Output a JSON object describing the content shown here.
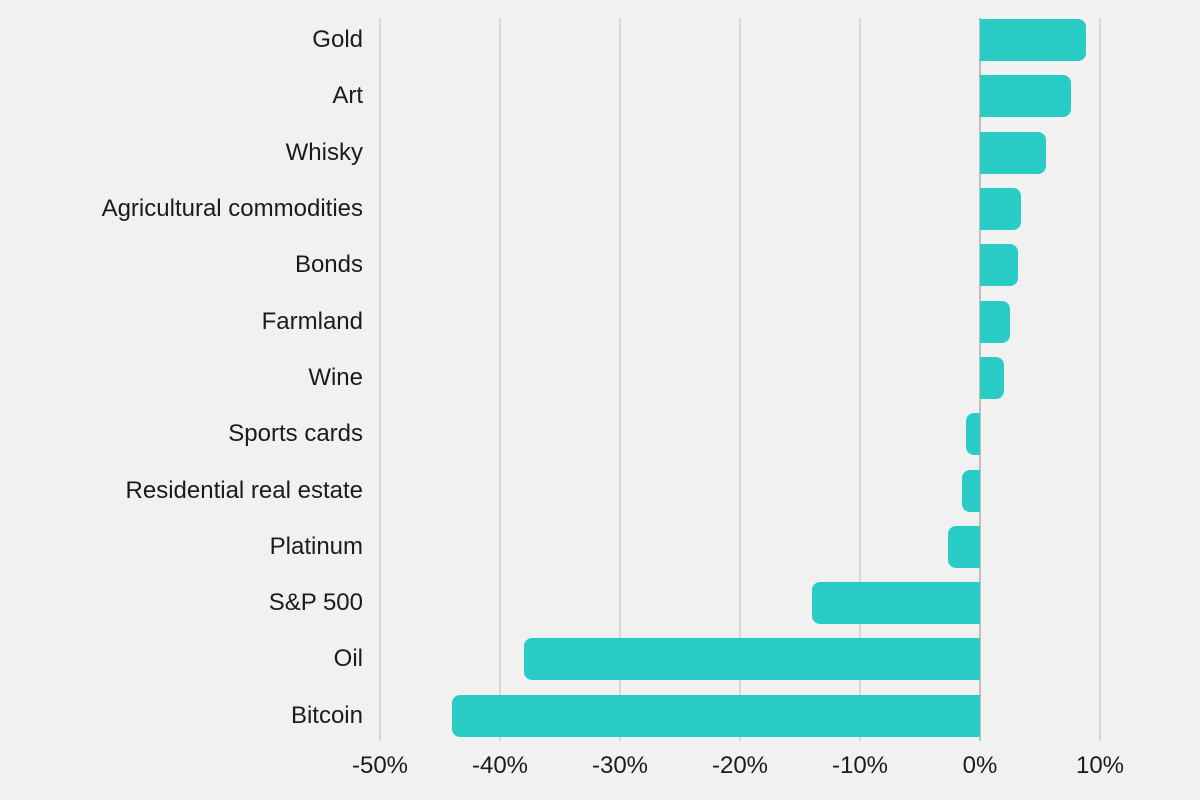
{
  "chart_data": {
    "type": "bar",
    "orientation": "horizontal",
    "title": "",
    "categories": [
      "Gold",
      "Art",
      "Whisky",
      "Agricultural commodities",
      "Bonds",
      "Farmland",
      "Wine",
      "Sports cards",
      "Residential real estate",
      "Platinum",
      "S&P 500",
      "Oil",
      "Bitcoin"
    ],
    "values": [
      8.8,
      7.6,
      5.5,
      3.4,
      3.2,
      2.5,
      2.0,
      -1.2,
      -1.5,
      -2.7,
      -14.0,
      -38.0,
      -44.0
    ],
    "value_suffix": "%",
    "xlabel": "",
    "ylabel": "",
    "xlim": [
      -50,
      10
    ],
    "x_ticks": [
      {
        "value": -50,
        "label": "-50%"
      },
      {
        "value": -40,
        "label": "-40%"
      },
      {
        "value": -30,
        "label": "-30%"
      },
      {
        "value": -20,
        "label": "-20%"
      },
      {
        "value": -10,
        "label": "-10%"
      },
      {
        "value": 0,
        "label": "0%"
      },
      {
        "value": 10,
        "label": "10%"
      }
    ],
    "grid": "vertical",
    "legend": "none",
    "colors": {
      "bar": "#28ccc4",
      "background": "#f1f1f2",
      "gridline": "#d7d7d9",
      "zero_line": "#c0c0c2",
      "text": "#1b1b1b"
    }
  }
}
